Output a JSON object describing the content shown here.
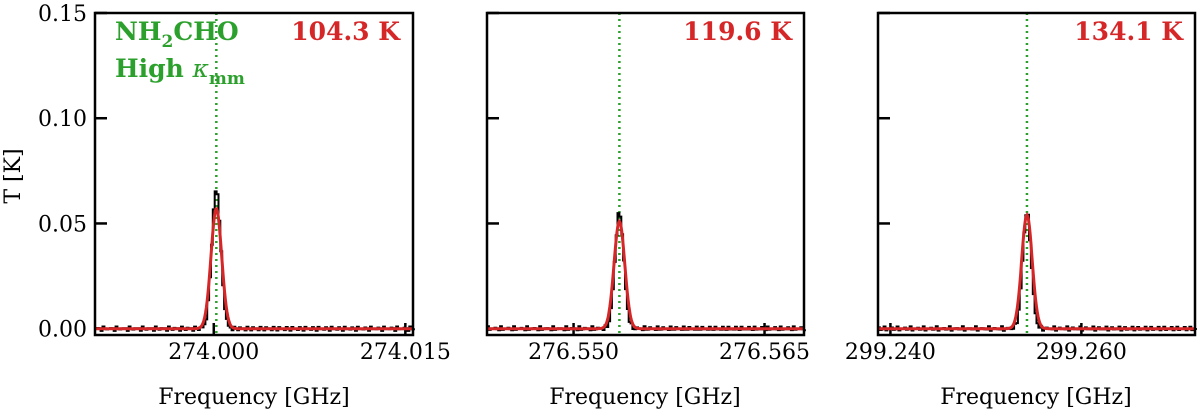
{
  "annotation": {
    "species_main": "NH",
    "species_sub": "2",
    "species_rest": "CHO",
    "model_main": "High ",
    "model_kappa": "κ",
    "model_sub": "mm",
    "species_color": "#2ca02c"
  },
  "colors": {
    "observed": "#000000",
    "model": "#d62728",
    "line_marker": "#2ca02c",
    "temp_label": "#d62728"
  },
  "y_axis": {
    "label": "T [K]",
    "ylim": [
      -0.003,
      0.15
    ],
    "ticks": [
      0.0,
      0.05,
      0.1,
      0.15
    ],
    "tick_labels": [
      "0.00",
      "0.05",
      "0.10",
      "0.15"
    ]
  },
  "chart_data": [
    {
      "type": "line",
      "temp_label": "104.3 K",
      "xlabel": "Frequency [GHz]",
      "xlim": [
        273.9907,
        274.0156
      ],
      "xticks": [
        274.0,
        274.015
      ],
      "xtick_labels": [
        "274.000",
        "274.015"
      ],
      "line_center": 274.0002,
      "series": [
        {
          "role": "observed",
          "peak": 0.066,
          "center": 274.0002,
          "sigma": 0.00035
        },
        {
          "role": "model",
          "peak": 0.057,
          "center": 274.0002,
          "sigma": 0.00042
        }
      ]
    },
    {
      "type": "line",
      "temp_label": "119.6 K",
      "xlabel": "Frequency [GHz]",
      "xlim": [
        276.5432,
        276.5681
      ],
      "xticks": [
        276.55,
        276.565
      ],
      "xtick_labels": [
        "276.550",
        "276.565"
      ],
      "line_center": 276.5536,
      "series": [
        {
          "role": "observed",
          "peak": 0.055,
          "center": 276.5536,
          "sigma": 0.00035
        },
        {
          "role": "model",
          "peak": 0.051,
          "center": 276.5536,
          "sigma": 0.00042
        }
      ]
    },
    {
      "type": "line",
      "temp_label": "134.1 K",
      "xlabel": "Frequency [GHz]",
      "xlim": [
        299.2387,
        299.2719
      ],
      "xticks": [
        299.24,
        299.26
      ],
      "xtick_labels": [
        "299.240",
        "299.260"
      ],
      "line_center": 299.2543,
      "series": [
        {
          "role": "observed",
          "peak": 0.055,
          "center": 299.2543,
          "sigma": 0.00045
        },
        {
          "role": "model",
          "peak": 0.054,
          "center": 299.2543,
          "sigma": 0.00055
        }
      ]
    }
  ]
}
